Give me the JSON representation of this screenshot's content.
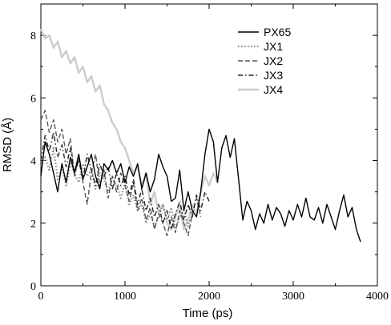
{
  "chart_data": {
    "type": "line",
    "title": "",
    "xlabel": "Time (ps)",
    "ylabel": "RMSD (Å)",
    "xlim": [
      0,
      4000
    ],
    "ylim": [
      0,
      9
    ],
    "x_ticks": [
      0,
      1000,
      2000,
      3000,
      4000
    ],
    "y_ticks": [
      0,
      2,
      4,
      6,
      8
    ],
    "grid": false,
    "legend_position": "top-right",
    "series": [
      {
        "name": "PX65",
        "color": "#000000",
        "style": "solid",
        "x": [
          0,
          50,
          100,
          150,
          200,
          250,
          300,
          350,
          400,
          450,
          500,
          550,
          600,
          650,
          700,
          750,
          800,
          850,
          900,
          950,
          1000,
          1050,
          1100,
          1150,
          1200,
          1250,
          1300,
          1350,
          1400,
          1450,
          1500,
          1550,
          1600,
          1650,
          1700,
          1750,
          1800,
          1850,
          1900,
          1950,
          2000,
          2050,
          2100,
          2150,
          2200,
          2250,
          2300,
          2350,
          2400,
          2450,
          2500,
          2550,
          2600,
          2650,
          2700,
          2750,
          2800,
          2850,
          2900,
          2950,
          3000,
          3050,
          3100,
          3150,
          3200,
          3250,
          3300,
          3350,
          3400,
          3450,
          3500,
          3550,
          3600,
          3650,
          3700,
          3750,
          3800
        ],
        "values": [
          3.5,
          4.6,
          4.2,
          3.6,
          3.0,
          3.9,
          3.3,
          4.1,
          3.6,
          4.2,
          3.4,
          3.8,
          4.2,
          3.5,
          3.1,
          3.9,
          3.7,
          4.0,
          3.6,
          3.9,
          3.3,
          3.8,
          3.5,
          3.9,
          3.1,
          3.6,
          3.0,
          3.4,
          4.2,
          3.8,
          3.5,
          2.7,
          2.8,
          3.7,
          2.4,
          3.0,
          2.4,
          2.2,
          3.0,
          4.2,
          5.0,
          4.6,
          3.3,
          4.4,
          4.8,
          4.1,
          4.7,
          3.4,
          2.1,
          2.7,
          2.4,
          1.8,
          2.3,
          2.0,
          2.6,
          2.1,
          2.5,
          2.3,
          1.9,
          2.4,
          2.1,
          2.6,
          2.2,
          2.8,
          2.2,
          2.1,
          2.5,
          2.0,
          2.6,
          2.2,
          1.8,
          2.4,
          2.9,
          2.2,
          2.5,
          1.8,
          1.4
        ]
      },
      {
        "name": "JX1",
        "color": "#888888",
        "style": "dotted",
        "x": [
          0,
          50,
          100,
          150,
          200,
          250,
          300,
          350,
          400,
          450,
          500,
          550,
          600,
          650,
          700,
          750,
          800,
          850,
          900,
          950,
          1000,
          1050,
          1100,
          1150,
          1200,
          1250,
          1300,
          1350,
          1400,
          1450,
          1500,
          1550,
          1600,
          1650,
          1700,
          1750,
          1800
        ],
        "values": [
          3.8,
          4.1,
          3.7,
          4.4,
          3.4,
          3.8,
          3.2,
          3.9,
          3.6,
          3.3,
          3.9,
          3.5,
          3.7,
          3.1,
          3.6,
          3.4,
          3.0,
          3.5,
          3.2,
          2.8,
          3.3,
          2.6,
          2.9,
          2.4,
          2.6,
          2.0,
          2.3,
          1.9,
          2.2,
          2.6,
          2.1,
          2.5,
          1.8,
          2.2,
          2.4,
          1.9,
          2.3
        ]
      },
      {
        "name": "JX2",
        "color": "#555555",
        "style": "dashed",
        "x": [
          0,
          50,
          100,
          150,
          200,
          250,
          300,
          350,
          400,
          450,
          500,
          550,
          600,
          650,
          700,
          750,
          800,
          850,
          900,
          950,
          1000,
          1050,
          1100,
          1150,
          1200,
          1250,
          1300,
          1350,
          1400,
          1450,
          1500,
          1550,
          1600,
          1650,
          1700,
          1750,
          1800,
          1850,
          1900
        ],
        "values": [
          5.3,
          5.6,
          4.9,
          5.3,
          4.6,
          5.0,
          4.2,
          4.7,
          3.5,
          4.1,
          3.3,
          2.6,
          3.6,
          4.2,
          3.2,
          3.7,
          2.8,
          3.5,
          3.0,
          3.6,
          3.2,
          2.7,
          3.3,
          2.4,
          2.8,
          2.1,
          2.5,
          1.8,
          2.3,
          2.0,
          1.6,
          2.2,
          1.7,
          2.4,
          2.0,
          1.6,
          2.3,
          2.8,
          2.2
        ]
      },
      {
        "name": "JX3",
        "color": "#222222",
        "style": "dashdot",
        "x": [
          0,
          50,
          100,
          150,
          200,
          250,
          300,
          350,
          400,
          450,
          500,
          550,
          600,
          650,
          700,
          750,
          800,
          850,
          900,
          950,
          1000,
          1050,
          1100,
          1150,
          1200,
          1250,
          1300,
          1350,
          1400,
          1450,
          1500,
          1550,
          1600,
          1650,
          1700,
          1750,
          1800,
          1850,
          1900,
          1950,
          2000
        ],
        "values": [
          4.0,
          4.8,
          4.3,
          4.9,
          4.1,
          4.5,
          3.8,
          4.4,
          3.6,
          4.0,
          3.4,
          4.2,
          3.7,
          3.2,
          3.9,
          3.5,
          3.8,
          3.1,
          3.6,
          3.2,
          3.5,
          2.9,
          3.4,
          2.6,
          3.1,
          2.4,
          2.8,
          2.2,
          2.6,
          2.0,
          2.4,
          1.8,
          2.3,
          2.7,
          2.1,
          2.6,
          2.2,
          2.9,
          2.4,
          3.0,
          2.7
        ]
      },
      {
        "name": "JX4",
        "color": "#cccccc",
        "style": "solid",
        "x": [
          0,
          50,
          100,
          150,
          200,
          250,
          300,
          350,
          400,
          450,
          500,
          550,
          600,
          650,
          700,
          750,
          800,
          850,
          900,
          950,
          1000,
          1050,
          1100,
          1150,
          1200,
          1250,
          1300,
          1350,
          1400,
          1450,
          1500,
          1550,
          1600,
          1650,
          1700,
          1750,
          1800,
          1850,
          1900,
          1950,
          2000,
          2050,
          2100
        ],
        "values": [
          8.2,
          7.9,
          8.0,
          7.6,
          7.8,
          7.3,
          7.5,
          7.1,
          7.3,
          6.8,
          7.0,
          6.5,
          6.7,
          6.2,
          6.4,
          5.8,
          5.6,
          5.2,
          5.0,
          4.6,
          4.4,
          4.0,
          3.6,
          3.8,
          3.2,
          3.6,
          2.6,
          3.0,
          2.3,
          2.6,
          2.0,
          1.8,
          2.2,
          2.6,
          1.8,
          2.1,
          2.6,
          2.3,
          3.0,
          3.5,
          3.2,
          3.6,
          3.3
        ]
      }
    ]
  }
}
